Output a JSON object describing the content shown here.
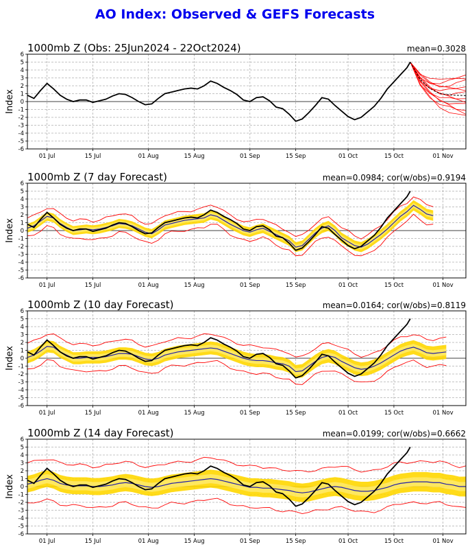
{
  "title": "AO Index: Observed & GEFS Forecasts",
  "colors": {
    "title": "#0000ee",
    "observed": "#000000",
    "ensemble": "#ff0000",
    "mean": "#1f1fa8",
    "band": "#ffd700",
    "band_light": "#fff29a"
  },
  "chart_data": [
    {
      "type": "line",
      "title": "1000mb Z (Obs: 25Jun2024 - 22Oct2024)",
      "stats": "mean=0.3028",
      "ylabel": "Index",
      "ylim": [
        -6,
        6
      ],
      "yticks": [
        -6,
        -5,
        -4,
        -3,
        -2,
        -1,
        0,
        1,
        2,
        3,
        4,
        5,
        6
      ],
      "xlim": [
        0,
        134
      ],
      "xtick_positions": [
        6,
        20,
        37,
        51,
        68,
        82,
        98,
        112,
        127
      ],
      "xtick_labels": [
        "01 Jul",
        "15 Jul",
        "01 Aug",
        "15 Aug",
        "01 Sep",
        "15 Sep",
        "01 Oct",
        "15 Oct",
        "01 Nov"
      ],
      "grid": true,
      "series": [
        {
          "role": "observed",
          "x": [
            0,
            2,
            4,
            6,
            8,
            10,
            12,
            14,
            16,
            18,
            20,
            22,
            24,
            26,
            28,
            30,
            32,
            34,
            36,
            38,
            40,
            42,
            44,
            46,
            48,
            50,
            52,
            54,
            56,
            58,
            60,
            62,
            64,
            66,
            68,
            70,
            72,
            74,
            76,
            78,
            80,
            82,
            84,
            86,
            88,
            90,
            92,
            94,
            96,
            98,
            100,
            102,
            104,
            106,
            108,
            110,
            112,
            114,
            116,
            117
          ],
          "values": [
            0.8,
            0.4,
            1.4,
            2.3,
            1.6,
            0.8,
            0.3,
            0.0,
            0.2,
            0.2,
            -0.1,
            0.1,
            0.3,
            0.7,
            1.0,
            0.9,
            0.5,
            0.0,
            -0.4,
            -0.3,
            0.4,
            1.0,
            1.2,
            1.4,
            1.6,
            1.7,
            1.6,
            2.0,
            2.6,
            2.3,
            1.8,
            1.4,
            0.9,
            0.2,
            0.0,
            0.5,
            0.6,
            0.1,
            -0.7,
            -0.9,
            -1.6,
            -2.5,
            -2.2,
            -1.4,
            -0.5,
            0.5,
            0.3,
            -0.5,
            -1.2,
            -1.9,
            -2.3,
            -2.0,
            -1.3,
            -0.6,
            0.4,
            1.6,
            2.5,
            3.4,
            4.3,
            5.0
          ]
        },
        {
          "role": "ensemble-fan",
          "x": [
            117,
            120,
            123,
            126,
            129,
            131,
            134
          ],
          "values_low": [
            5.0,
            2.0,
            0.5,
            -0.6,
            -1.2,
            -1.6,
            -2.0
          ],
          "values_high": [
            5.0,
            3.6,
            2.8,
            2.6,
            2.9,
            3.2,
            3.5
          ],
          "member_count": 12
        }
      ]
    },
    {
      "type": "line",
      "title": "1000mb Z (7 day Forecast)",
      "stats": "mean=0.0984; cor(w/obs)=0.9194",
      "ylabel": "Index",
      "ylim": [
        -6,
        6
      ],
      "yticks": [
        -6,
        -5,
        -4,
        -3,
        -2,
        -1,
        0,
        1,
        2,
        3,
        4,
        5,
        6
      ],
      "xlim": [
        0,
        134
      ],
      "xtick_positions": [
        6,
        20,
        37,
        51,
        68,
        82,
        98,
        112,
        127
      ],
      "xtick_labels": [
        "01 Jul",
        "15 Jul",
        "01 Aug",
        "15 Aug",
        "01 Sep",
        "15 Sep",
        "01 Oct",
        "15 Oct",
        "01 Nov"
      ],
      "grid": true,
      "series": [
        {
          "role": "observed",
          "x": [
            0,
            2,
            4,
            6,
            8,
            10,
            12,
            14,
            16,
            18,
            20,
            22,
            24,
            26,
            28,
            30,
            32,
            34,
            36,
            38,
            40,
            42,
            44,
            46,
            48,
            50,
            52,
            54,
            56,
            58,
            60,
            62,
            64,
            66,
            68,
            70,
            72,
            74,
            76,
            78,
            80,
            82,
            84,
            86,
            88,
            90,
            92,
            94,
            96,
            98,
            100,
            102,
            104,
            106,
            108,
            110,
            112,
            114,
            116,
            117
          ],
          "values": [
            0.8,
            0.4,
            1.4,
            2.3,
            1.6,
            0.8,
            0.3,
            0.0,
            0.2,
            0.2,
            -0.1,
            0.1,
            0.3,
            0.7,
            1.0,
            0.9,
            0.5,
            0.0,
            -0.4,
            -0.3,
            0.4,
            1.0,
            1.2,
            1.4,
            1.6,
            1.7,
            1.6,
            2.0,
            2.6,
            2.3,
            1.8,
            1.4,
            0.9,
            0.2,
            0.0,
            0.5,
            0.6,
            0.1,
            -0.7,
            -0.9,
            -1.6,
            -2.5,
            -2.2,
            -1.4,
            -0.5,
            0.5,
            0.3,
            -0.5,
            -1.2,
            -1.9,
            -2.3,
            -2.0,
            -1.3,
            -0.6,
            0.4,
            1.6,
            2.5,
            3.4,
            4.3,
            5.0
          ]
        },
        {
          "role": "mean",
          "x": [
            0,
            2,
            4,
            6,
            8,
            10,
            12,
            14,
            16,
            18,
            20,
            22,
            24,
            26,
            28,
            30,
            32,
            34,
            36,
            38,
            40,
            42,
            44,
            46,
            48,
            50,
            52,
            54,
            56,
            58,
            60,
            62,
            64,
            66,
            68,
            70,
            72,
            74,
            76,
            78,
            80,
            82,
            84,
            86,
            88,
            90,
            92,
            94,
            96,
            98,
            100,
            102,
            104,
            106,
            108,
            110,
            112,
            114,
            116,
            118,
            120,
            122,
            124
          ],
          "values": [
            0.3,
            0.6,
            1.2,
            1.8,
            1.6,
            0.9,
            0.4,
            0.0,
            0.1,
            0.2,
            0.1,
            0.2,
            0.4,
            0.6,
            0.9,
            0.8,
            0.6,
            0.2,
            -0.2,
            -0.4,
            0.1,
            0.7,
            0.9,
            1.1,
            1.3,
            1.4,
            1.5,
            1.6,
            2.0,
            1.8,
            1.3,
            0.8,
            0.4,
            0.0,
            -0.2,
            0.1,
            0.3,
            -0.1,
            -0.5,
            -0.9,
            -1.3,
            -2.1,
            -1.9,
            -1.1,
            -0.3,
            0.3,
            0.6,
            0.0,
            -0.9,
            -1.4,
            -1.9,
            -2.1,
            -1.7,
            -1.1,
            -0.5,
            0.2,
            1.0,
            1.8,
            2.4,
            3.2,
            2.7,
            2.1,
            1.9
          ]
        },
        {
          "role": "band",
          "halfwidth": 0.55
        },
        {
          "role": "spread",
          "halfwidth": 1.2
        }
      ]
    },
    {
      "type": "line",
      "title": "1000mb Z (10 day Forecast)",
      "stats": "mean=0.0164; cor(w/obs)=0.8119",
      "ylabel": "Index",
      "ylim": [
        -6,
        6
      ],
      "yticks": [
        -6,
        -5,
        -4,
        -3,
        -2,
        -1,
        0,
        1,
        2,
        3,
        4,
        5,
        6
      ],
      "xlim": [
        0,
        134
      ],
      "xtick_positions": [
        6,
        20,
        37,
        51,
        68,
        82,
        98,
        112,
        127
      ],
      "xtick_labels": [
        "01 Jul",
        "15 Jul",
        "01 Aug",
        "15 Aug",
        "01 Sep",
        "15 Sep",
        "01 Oct",
        "15 Oct",
        "01 Nov"
      ],
      "grid": true,
      "series": [
        {
          "role": "observed",
          "x": [
            0,
            2,
            4,
            6,
            8,
            10,
            12,
            14,
            16,
            18,
            20,
            22,
            24,
            26,
            28,
            30,
            32,
            34,
            36,
            38,
            40,
            42,
            44,
            46,
            48,
            50,
            52,
            54,
            56,
            58,
            60,
            62,
            64,
            66,
            68,
            70,
            72,
            74,
            76,
            78,
            80,
            82,
            84,
            86,
            88,
            90,
            92,
            94,
            96,
            98,
            100,
            102,
            104,
            106,
            108,
            110,
            112,
            114,
            116,
            117
          ],
          "values": [
            0.8,
            0.4,
            1.4,
            2.3,
            1.6,
            0.8,
            0.3,
            0.0,
            0.2,
            0.2,
            -0.1,
            0.1,
            0.3,
            0.7,
            1.0,
            0.9,
            0.5,
            0.0,
            -0.4,
            -0.3,
            0.4,
            1.0,
            1.2,
            1.4,
            1.6,
            1.7,
            1.6,
            2.0,
            2.6,
            2.3,
            1.8,
            1.4,
            0.9,
            0.2,
            0.0,
            0.5,
            0.6,
            0.1,
            -0.7,
            -0.9,
            -1.6,
            -2.5,
            -2.2,
            -1.4,
            -0.5,
            0.5,
            0.3,
            -0.5,
            -1.2,
            -1.9,
            -2.3,
            -2.0,
            -1.3,
            -0.6,
            0.4,
            1.6,
            2.5,
            3.4,
            4.3,
            5.0
          ]
        },
        {
          "role": "mean",
          "x": [
            0,
            2,
            4,
            6,
            8,
            10,
            12,
            14,
            16,
            18,
            20,
            22,
            24,
            26,
            28,
            30,
            32,
            34,
            36,
            38,
            40,
            42,
            44,
            46,
            48,
            50,
            52,
            54,
            56,
            58,
            60,
            62,
            64,
            66,
            68,
            70,
            72,
            74,
            76,
            78,
            80,
            82,
            84,
            86,
            88,
            90,
            92,
            94,
            96,
            98,
            100,
            102,
            104,
            106,
            108,
            110,
            112,
            114,
            116,
            118,
            120,
            122,
            124,
            126,
            128
          ],
          "values": [
            0.1,
            0.4,
            0.9,
            1.5,
            1.4,
            0.8,
            0.4,
            0.0,
            0.0,
            0.1,
            0.1,
            0.1,
            0.2,
            0.4,
            0.6,
            0.6,
            0.5,
            0.2,
            -0.1,
            -0.2,
            0.0,
            0.4,
            0.6,
            0.8,
            0.9,
            1.0,
            1.1,
            1.2,
            1.3,
            1.2,
            0.9,
            0.6,
            0.3,
            0.0,
            -0.2,
            -0.3,
            -0.3,
            -0.4,
            -0.6,
            -0.7,
            -1.0,
            -1.7,
            -1.6,
            -1.0,
            -0.4,
            0.1,
            0.3,
            0.1,
            -0.4,
            -0.8,
            -1.2,
            -1.4,
            -1.3,
            -1.0,
            -0.6,
            -0.1,
            0.4,
            0.9,
            1.2,
            1.4,
            1.1,
            0.7,
            0.6,
            0.7,
            0.8
          ]
        },
        {
          "role": "band",
          "halfwidth": 0.75
        },
        {
          "role": "spread",
          "halfwidth": 1.7
        }
      ]
    },
    {
      "type": "line",
      "title": "1000mb Z (14 day Forecast)",
      "stats": "mean=0.0199; cor(w/obs)=0.6662",
      "ylabel": "Index",
      "ylim": [
        -6,
        6
      ],
      "yticks": [
        -6,
        -5,
        -4,
        -3,
        -2,
        -1,
        0,
        1,
        2,
        3,
        4,
        5,
        6
      ],
      "xlim": [
        0,
        134
      ],
      "xtick_positions": [
        6,
        20,
        37,
        51,
        68,
        82,
        98,
        112,
        127
      ],
      "xtick_labels": [
        "01 Jul",
        "15 Jul",
        "01 Aug",
        "15 Aug",
        "01 Sep",
        "15 Sep",
        "01 Oct",
        "15 Oct",
        "01 Nov"
      ],
      "grid": true,
      "series": [
        {
          "role": "observed",
          "x": [
            0,
            2,
            4,
            6,
            8,
            10,
            12,
            14,
            16,
            18,
            20,
            22,
            24,
            26,
            28,
            30,
            32,
            34,
            36,
            38,
            40,
            42,
            44,
            46,
            48,
            50,
            52,
            54,
            56,
            58,
            60,
            62,
            64,
            66,
            68,
            70,
            72,
            74,
            76,
            78,
            80,
            82,
            84,
            86,
            88,
            90,
            92,
            94,
            96,
            98,
            100,
            102,
            104,
            106,
            108,
            110,
            112,
            114,
            116,
            117
          ],
          "values": [
            0.8,
            0.4,
            1.4,
            2.3,
            1.6,
            0.8,
            0.3,
            0.0,
            0.2,
            0.2,
            -0.1,
            0.1,
            0.3,
            0.7,
            1.0,
            0.9,
            0.5,
            0.0,
            -0.4,
            -0.3,
            0.4,
            1.0,
            1.2,
            1.4,
            1.6,
            1.7,
            1.6,
            2.0,
            2.6,
            2.3,
            1.8,
            1.4,
            0.9,
            0.2,
            0.0,
            0.5,
            0.6,
            0.1,
            -0.7,
            -0.9,
            -1.6,
            -2.5,
            -2.2,
            -1.4,
            -0.5,
            0.5,
            0.3,
            -0.5,
            -1.2,
            -1.9,
            -2.3,
            -2.0,
            -1.3,
            -0.6,
            0.4,
            1.6,
            2.5,
            3.4,
            4.3,
            5.0
          ]
        },
        {
          "role": "mean",
          "x": [
            0,
            2,
            4,
            6,
            8,
            10,
            12,
            14,
            16,
            18,
            20,
            22,
            24,
            26,
            28,
            30,
            32,
            34,
            36,
            38,
            40,
            42,
            44,
            46,
            48,
            50,
            52,
            54,
            56,
            58,
            60,
            62,
            64,
            66,
            68,
            70,
            72,
            74,
            76,
            78,
            80,
            82,
            84,
            86,
            88,
            90,
            92,
            94,
            96,
            98,
            100,
            102,
            104,
            106,
            108,
            110,
            112,
            114,
            116,
            118,
            120,
            122,
            124,
            126,
            128,
            130,
            132,
            134
          ],
          "values": [
            0.3,
            0.5,
            0.8,
            1.0,
            0.8,
            0.4,
            0.2,
            0.1,
            0.1,
            0.1,
            0.0,
            0.0,
            0.1,
            0.2,
            0.4,
            0.5,
            0.4,
            0.2,
            0.0,
            -0.1,
            0.0,
            0.2,
            0.4,
            0.5,
            0.6,
            0.7,
            0.8,
            0.9,
            1.0,
            0.9,
            0.7,
            0.5,
            0.3,
            0.1,
            -0.1,
            -0.1,
            -0.2,
            -0.2,
            -0.3,
            -0.4,
            -0.5,
            -0.7,
            -0.8,
            -0.7,
            -0.5,
            -0.3,
            -0.1,
            0.0,
            -0.1,
            -0.3,
            -0.5,
            -0.6,
            -0.6,
            -0.5,
            -0.3,
            -0.1,
            0.2,
            0.4,
            0.5,
            0.6,
            0.6,
            0.6,
            0.5,
            0.5,
            0.3,
            0.2,
            0.0,
            0.0
          ]
        },
        {
          "role": "band",
          "halfwidth": 1.05
        },
        {
          "role": "spread",
          "halfwidth": 2.6
        }
      ]
    }
  ]
}
